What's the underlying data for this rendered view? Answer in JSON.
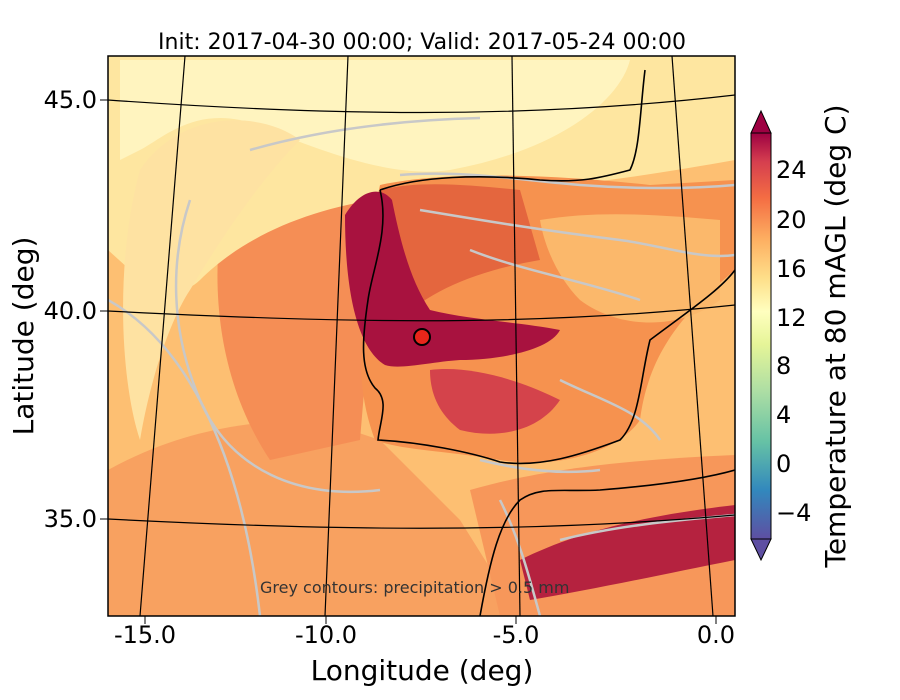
{
  "figure": {
    "title": "Init: 2017-04-30 00:00; Valid: 2017-05-24 00:00",
    "x_label": "Longitude (deg)",
    "y_label": "Latitude (deg)",
    "x_ticks": [
      "-15.0",
      "-10.0",
      "-5.0",
      "0.0"
    ],
    "y_ticks": [
      "45.0",
      "40.0",
      "35.0"
    ],
    "annotation": "Grey contours: precipitation > 0.5 mm"
  },
  "colorbar": {
    "label": "Temperature at 80 mAGL (deg C)",
    "ticks": [
      "24",
      "20",
      "16",
      "12",
      "8",
      "4",
      "0",
      "−4"
    ],
    "min": -6,
    "max": 27,
    "extend": "both"
  },
  "map": {
    "extent_lon": [
      -16,
      0.3
    ],
    "extent_lat": [
      32.8,
      46.2
    ],
    "projection": "curved-graticule",
    "marker": {
      "lon": -7.6,
      "lat": 39.3,
      "color": "#e8261a"
    }
  },
  "palette": {
    "warmest": "#9e0142",
    "hot": "#d53e4f",
    "warm": "#f46d43",
    "mild": "#fdae61",
    "cool": "#fee08b",
    "cooler": "#ffffbf",
    "cold": "#abdda4",
    "colder": "#66c2a5",
    "coldest": "#5e4fa2",
    "precip_contour": "#c8c8c8"
  }
}
